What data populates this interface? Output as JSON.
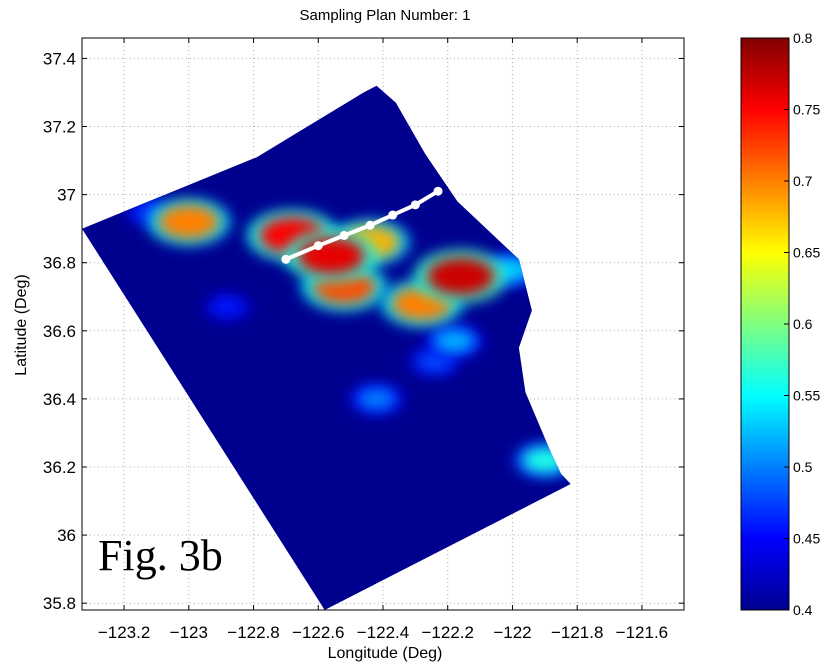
{
  "chart_data": {
    "type": "heatmap",
    "title": "Sampling Plan Number: 1",
    "xlabel": "Longitude (Deg)",
    "ylabel": "Latitude (Deg)",
    "xlim": [
      -123.33,
      -121.47
    ],
    "ylim": [
      35.78,
      37.46
    ],
    "xticks": [
      -123.2,
      -123.0,
      -122.8,
      -122.6,
      -122.4,
      -122.2,
      -122.0,
      -121.8,
      -121.6
    ],
    "xtick_labels": [
      "−123.2",
      "−123",
      "−122.8",
      "−122.6",
      "−122.4",
      "−122.2",
      "−122",
      "−121.8",
      "−121.6"
    ],
    "yticks": [
      35.8,
      36.0,
      36.2,
      36.4,
      36.6,
      36.8,
      37.0,
      37.2,
      37.4
    ],
    "ytick_labels": [
      "35.8",
      "36",
      "36.2",
      "36.4",
      "36.6",
      "36.8",
      "37",
      "37.2",
      "37.4"
    ],
    "grid": true,
    "colormap": "jet",
    "colorbar": {
      "min": 0.4,
      "max": 0.8,
      "ticks": [
        0.4,
        0.45,
        0.5,
        0.55,
        0.6,
        0.65,
        0.7,
        0.75,
        0.8
      ],
      "tick_labels": [
        "0.4",
        "0.45",
        "0.5",
        "0.55",
        "0.6",
        "0.65",
        "0.7",
        "0.75",
        "0.8"
      ]
    },
    "domain_polygon": [
      [
        -123.33,
        36.9
      ],
      [
        -122.79,
        37.11
      ],
      [
        -122.46,
        37.3
      ],
      [
        -122.42,
        37.32
      ],
      [
        -122.36,
        37.27
      ],
      [
        -122.27,
        37.12
      ],
      [
        -122.17,
        36.98
      ],
      [
        -121.98,
        36.81
      ],
      [
        -121.94,
        36.66
      ],
      [
        -121.98,
        36.55
      ],
      [
        -121.96,
        36.42
      ],
      [
        -121.88,
        36.24
      ],
      [
        -121.85,
        36.18
      ],
      [
        -121.82,
        36.15
      ],
      [
        -122.58,
        35.78
      ]
    ],
    "hotspots": [
      {
        "lon": -123.0,
        "lat": 36.92,
        "value": 0.7
      },
      {
        "lon": -122.68,
        "lat": 36.88,
        "value": 0.75
      },
      {
        "lon": -122.56,
        "lat": 36.82,
        "value": 0.76
      },
      {
        "lon": -122.52,
        "lat": 36.73,
        "value": 0.72
      },
      {
        "lon": -122.44,
        "lat": 36.86,
        "value": 0.68
      },
      {
        "lon": -122.16,
        "lat": 36.76,
        "value": 0.77
      },
      {
        "lon": -122.28,
        "lat": 36.68,
        "value": 0.7
      },
      {
        "lon": -123.12,
        "lat": 36.95,
        "value": 0.47
      },
      {
        "lon": -122.18,
        "lat": 36.57,
        "value": 0.52
      },
      {
        "lon": -122.24,
        "lat": 36.51,
        "value": 0.48
      },
      {
        "lon": -122.42,
        "lat": 36.4,
        "value": 0.5
      },
      {
        "lon": -121.9,
        "lat": 36.22,
        "value": 0.56
      },
      {
        "lon": -122.0,
        "lat": 36.78,
        "value": 0.53
      },
      {
        "lon": -122.88,
        "lat": 36.67,
        "value": 0.46
      }
    ],
    "sampling_path": {
      "points": [
        [
          -122.7,
          36.81
        ],
        [
          -122.6,
          36.85
        ],
        [
          -122.52,
          36.88
        ],
        [
          -122.44,
          36.91
        ],
        [
          -122.37,
          36.94
        ],
        [
          -122.3,
          36.97
        ],
        [
          -122.23,
          37.01
        ]
      ]
    }
  },
  "annotation": "Fig. 3b"
}
